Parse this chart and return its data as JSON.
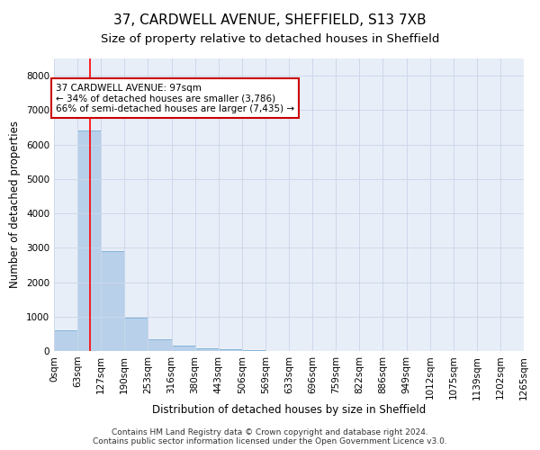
{
  "title1": "37, CARDWELL AVENUE, SHEFFIELD, S13 7XB",
  "title2": "Size of property relative to detached houses in Sheffield",
  "xlabel": "Distribution of detached houses by size in Sheffield",
  "ylabel": "Number of detached properties",
  "bar_values": [
    600,
    6400,
    2900,
    970,
    350,
    160,
    90,
    60,
    20,
    10,
    5,
    3,
    2,
    1,
    1,
    1,
    0,
    0,
    0,
    0
  ],
  "bin_labels": [
    "0sqm",
    "63sqm",
    "127sqm",
    "190sqm",
    "253sqm",
    "316sqm",
    "380sqm",
    "443sqm",
    "506sqm",
    "569sqm",
    "633sqm",
    "696sqm",
    "759sqm",
    "822sqm",
    "886sqm",
    "949sqm",
    "1012sqm",
    "1075sqm",
    "1139sqm",
    "1202sqm",
    "1265sqm"
  ],
  "bar_color": "#b8d0ea",
  "bar_edge_color": "#7aafd4",
  "bar_edge_width": 0.6,
  "red_line_x": 1.54,
  "annotation_text": "37 CARDWELL AVENUE: 97sqm\n← 34% of detached houses are smaller (3,786)\n66% of semi-detached houses are larger (7,435) →",
  "annotation_box_color": "#ffffff",
  "annotation_box_edge": "#cc0000",
  "ylim": [
    0,
    8500
  ],
  "yticks": [
    0,
    1000,
    2000,
    3000,
    4000,
    5000,
    6000,
    7000,
    8000
  ],
  "grid_color": "#cdd8ea",
  "background_color": "#e8eef8",
  "footer_text": "Contains HM Land Registry data © Crown copyright and database right 2024.\nContains public sector information licensed under the Open Government Licence v3.0.",
  "title1_fontsize": 11,
  "title2_fontsize": 9.5,
  "xlabel_fontsize": 8.5,
  "ylabel_fontsize": 8.5,
  "tick_fontsize": 7.5,
  "annotation_fontsize": 7.5,
  "footer_fontsize": 6.5
}
